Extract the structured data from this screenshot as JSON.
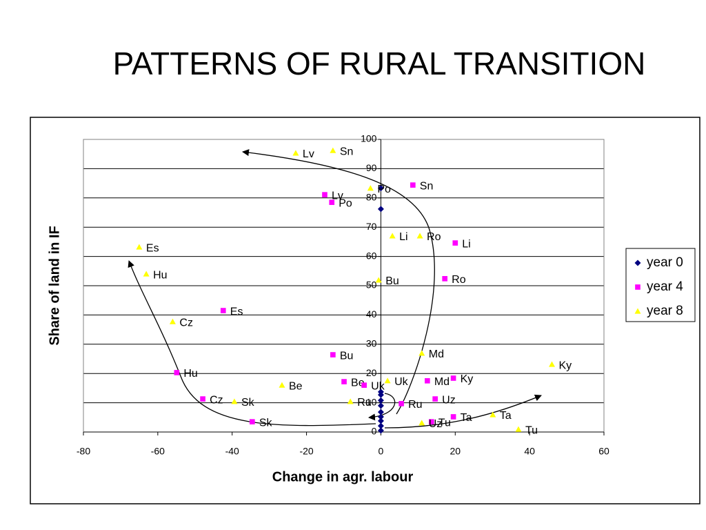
{
  "chart_data": {
    "type": "scatter",
    "title": "PATTERNS OF RURAL TRANSITION",
    "x_label": "Change in agr. labour",
    "y_label": "Share of land in IF",
    "xlim": [
      -80,
      60
    ],
    "ylim": [
      0,
      100
    ],
    "xticks": [
      -80,
      -60,
      -40,
      -20,
      0,
      20,
      40,
      60
    ],
    "yticks": [
      0,
      10,
      20,
      30,
      40,
      50,
      60,
      70,
      80,
      90,
      100
    ],
    "grid": true,
    "legend": "right",
    "series": [
      {
        "name": "year 0",
        "color": "#000080",
        "marker": "diamond",
        "x": [
          0,
          0,
          0,
          0,
          0,
          0,
          0,
          0,
          0,
          0,
          0
        ],
        "values": [
          83.3,
          76.2,
          13.7,
          12.7,
          10.8,
          9,
          6.8,
          5.2,
          3.8,
          2.1,
          0.5
        ]
      },
      {
        "name": "year 4",
        "color": "#ff00ff",
        "marker": "square",
        "labels": [
          "Sn",
          "Lv",
          "Po",
          "Li",
          "Ro",
          "Es",
          "Bu",
          "Hu",
          "Be",
          "Uk",
          "Md",
          "Ky",
          "Cz",
          "Uz",
          "Ru",
          "Sk",
          "Ta",
          "Tu"
        ],
        "x": [
          8.6,
          -15.1,
          -13.2,
          20,
          17.2,
          -42.4,
          -12.9,
          -54.9,
          -9.9,
          -4.5,
          12.5,
          19.5,
          -47.9,
          14.6,
          5.5,
          -34.6,
          19.5,
          13.6
        ],
        "values": [
          84.4,
          81.1,
          78.5,
          64.6,
          52.4,
          41.5,
          26.4,
          20.3,
          17.2,
          16,
          17.5,
          18.4,
          11.3,
          11.3,
          9.7,
          3.5,
          5.2,
          3.5
        ]
      },
      {
        "name": "year 8",
        "color": "#ffff00",
        "marker": "triangle",
        "labels": [
          "Lv",
          "Sn",
          "Po",
          "Li",
          "Ro",
          "Es",
          "Hu",
          "Bu",
          "Cz",
          "Md",
          "Ky",
          "Uk",
          "Be",
          "Sk",
          "Ru",
          "Ta",
          "Uz",
          "Tu"
        ],
        "x": [
          -22.9,
          -12.9,
          -2.8,
          3.1,
          10.5,
          -65,
          -63.1,
          -0.6,
          -56,
          11,
          46,
          1.8,
          -26.6,
          -39.4,
          -8.2,
          30.1,
          11,
          37
        ],
        "values": [
          95.3,
          96.2,
          83.3,
          67,
          67,
          63.2,
          54,
          51.9,
          37.7,
          26.9,
          23.1,
          17.5,
          16,
          10.4,
          10.4,
          5.9,
          3.1,
          0.9
        ]
      }
    ]
  }
}
